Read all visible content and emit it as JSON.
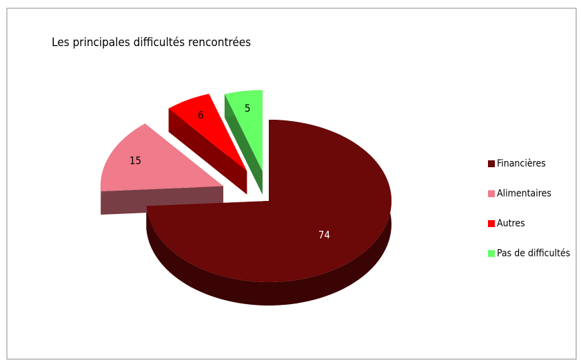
{
  "chart_data": {
    "type": "pie",
    "title": "Les principales difficultés rencontrées",
    "categories": [
      "Financières",
      "Alimentaires",
      "Autres",
      "Pas de difficultés"
    ],
    "values": [
      74,
      15,
      6,
      5
    ],
    "colors": [
      "#6b0808",
      "#f07b8a",
      "#ff0000",
      "#66ff66"
    ],
    "legend": "right",
    "three_d": true,
    "exploded": true
  }
}
